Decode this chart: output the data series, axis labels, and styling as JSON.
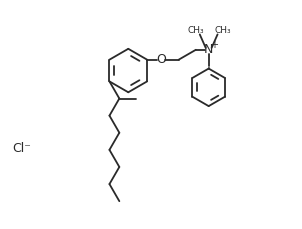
{
  "bg_color": "#ffffff",
  "line_color": "#2a2a2a",
  "line_width": 1.3,
  "font_size": 8.0,
  "cl_font_size": 9.0,
  "n_label": "N",
  "o_label": "O",
  "cl_label": "Cl⁻",
  "plus_label": "+"
}
